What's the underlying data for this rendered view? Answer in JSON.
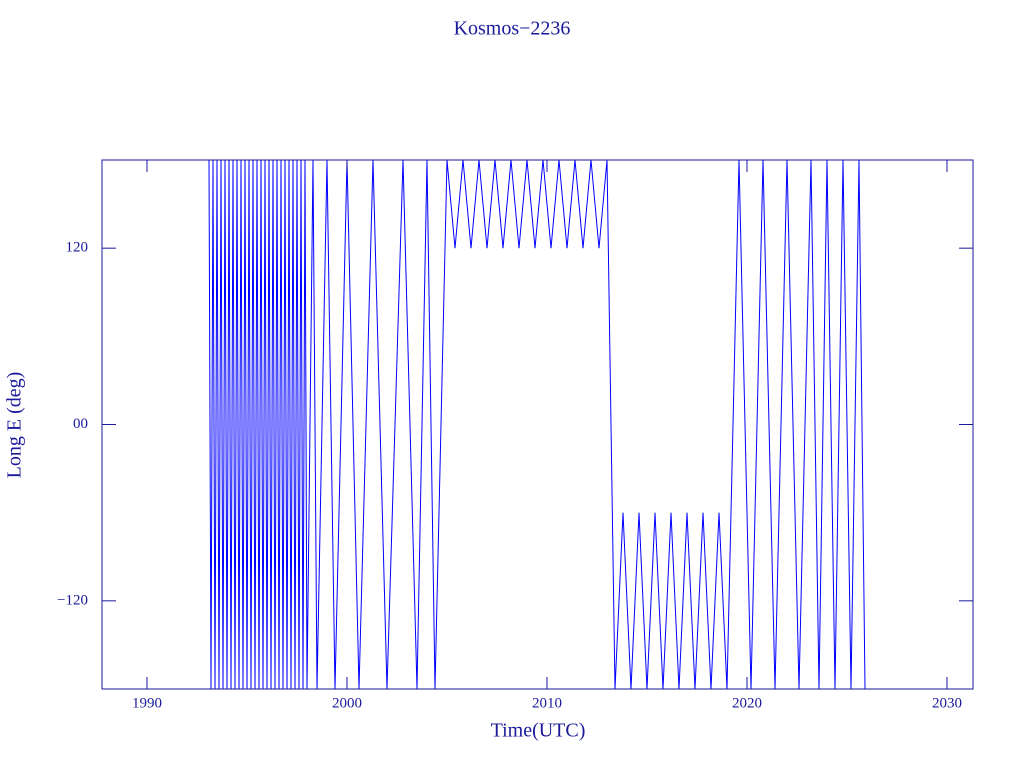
{
  "chart_data": {
    "type": "line",
    "title": "Kosmos−2236",
    "x_label": "Time(UTC)",
    "y_label": "Long E (deg)",
    "color": "#0000ff",
    "x": [
      1993.1,
      1993.2,
      1993.3,
      1993.4,
      1993.5,
      1993.6,
      1993.7,
      1993.8,
      1993.9,
      1994.0,
      1994.1,
      1994.2,
      1994.3,
      1994.4,
      1994.5,
      1994.6,
      1994.7,
      1994.8,
      1994.9,
      1995.0,
      1995.1,
      1995.2,
      1995.3,
      1995.4,
      1995.5,
      1995.6,
      1995.7,
      1995.8,
      1995.9,
      1996.0,
      1996.1,
      1996.2,
      1996.3,
      1996.4,
      1996.5,
      1996.6,
      1996.7,
      1996.8,
      1996.9,
      1997.0,
      1997.1,
      1997.2,
      1997.3,
      1997.4,
      1997.5,
      1997.6,
      1997.7,
      1997.8,
      1997.9,
      1998.0,
      1998.3,
      1998.5,
      1999.0,
      1999.4,
      2000.0,
      2000.6,
      2001.3,
      2002.0,
      2002.8,
      2003.5,
      2004.0,
      2004.4,
      2005.0,
      2005.4,
      2005.8,
      2006.2,
      2006.6,
      2007.0,
      2007.4,
      2007.8,
      2008.2,
      2008.6,
      2009.0,
      2009.4,
      2009.8,
      2010.2,
      2010.6,
      2011.0,
      2011.4,
      2011.8,
      2012.2,
      2012.6,
      2013.0,
      2013.4,
      2013.8,
      2014.2,
      2014.6,
      2015.0,
      2015.4,
      2015.8,
      2016.2,
      2016.6,
      2017.0,
      2017.4,
      2017.8,
      2018.2,
      2018.6,
      2019.0,
      2019.6,
      2020.2,
      2020.8,
      2021.4,
      2022.0,
      2022.6,
      2023.2,
      2023.6,
      2024.0,
      2024.4,
      2024.8,
      2025.2,
      2025.6,
      2025.9
    ],
    "values": [
      180,
      -180,
      180,
      -180,
      180,
      -180,
      180,
      -180,
      180,
      -180,
      180,
      -180,
      180,
      -180,
      180,
      -180,
      180,
      -180,
      180,
      -180,
      180,
      -180,
      180,
      -180,
      180,
      -180,
      180,
      -180,
      180,
      -180,
      180,
      -180,
      180,
      -180,
      180,
      -180,
      180,
      -180,
      180,
      -180,
      180,
      -180,
      180,
      -180,
      180,
      -180,
      180,
      -180,
      180,
      -180,
      180,
      -180,
      180,
      -180,
      180,
      -180,
      180,
      -180,
      180,
      -180,
      180,
      -180,
      180,
      120,
      180,
      120,
      180,
      120,
      180,
      120,
      180,
      120,
      180,
      120,
      180,
      120,
      180,
      120,
      180,
      120,
      180,
      120,
      180,
      -180,
      -60,
      -180,
      -60,
      -180,
      -60,
      -180,
      -60,
      -180,
      -60,
      -180,
      -60,
      -180,
      -60,
      -180,
      180,
      -180,
      180,
      -180,
      180,
      -180,
      180,
      -180,
      180,
      -180,
      180,
      -180,
      180,
      -180
    ],
    "xlim": [
      1987.75,
      2031.3
    ],
    "ylim": [
      -180,
      180
    ],
    "xticks": [
      1990,
      2000,
      2010,
      2020,
      2030
    ],
    "yticks": [
      {
        "value": -120,
        "label": "−120"
      },
      {
        "value": 0,
        "label": "00"
      },
      120
    ]
  }
}
